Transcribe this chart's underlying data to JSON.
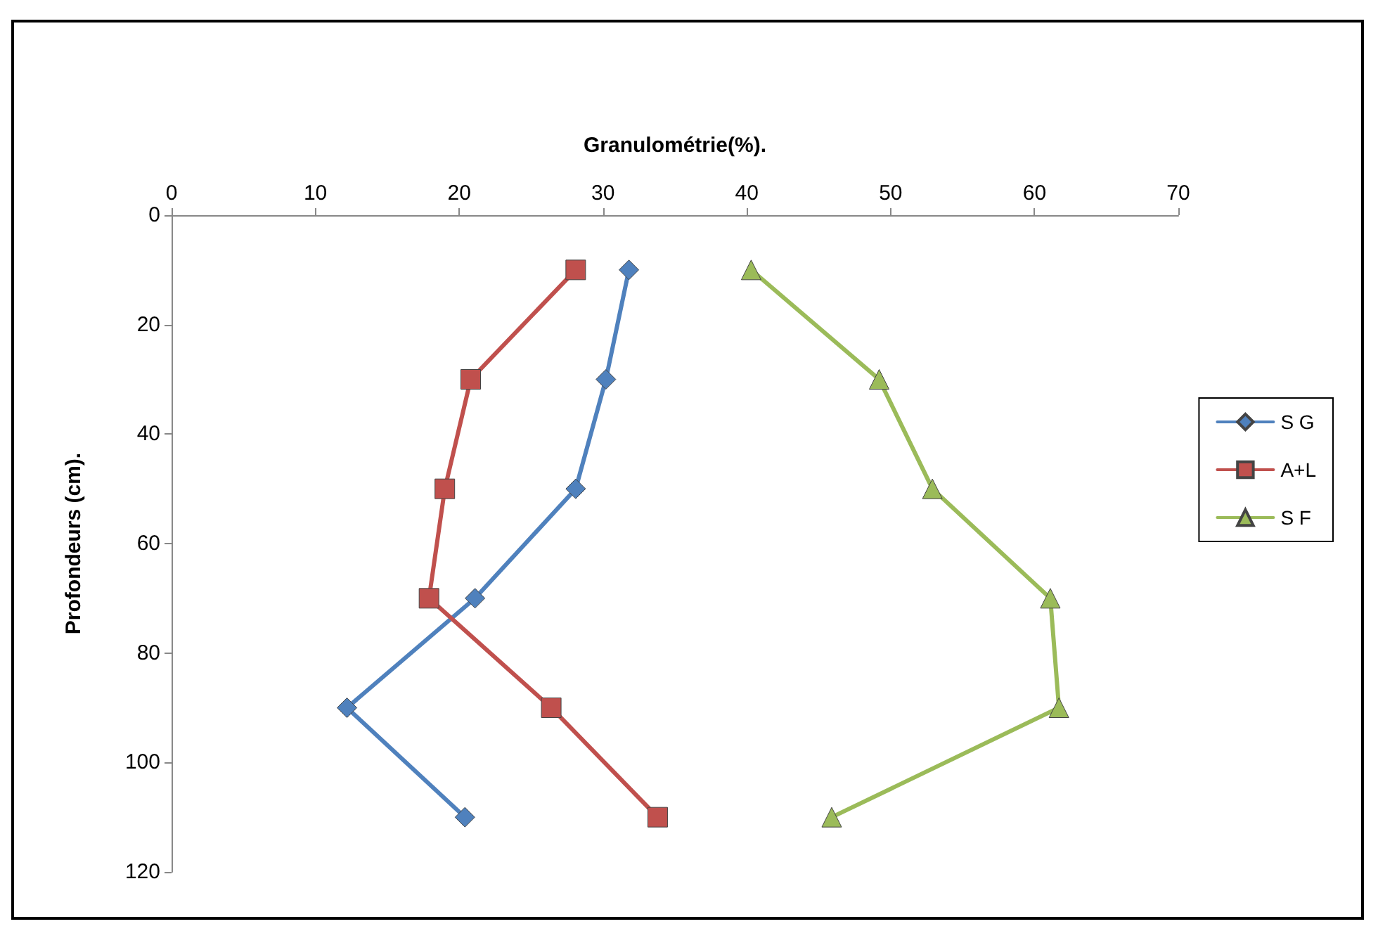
{
  "chart_data": {
    "type": "line",
    "xlabel": "Granulométrie(%).",
    "ylabel": "Profondeurs (cm).",
    "xlim": [
      0,
      70
    ],
    "xticks": [
      0,
      10,
      20,
      30,
      40,
      50,
      60,
      70
    ],
    "ylim": [
      120,
      0
    ],
    "yticks": [
      0,
      20,
      40,
      60,
      80,
      100,
      120
    ],
    "grid": false,
    "legend": "right",
    "series": [
      {
        "name": "S G",
        "color": "#4f81bd",
        "marker": "diamond",
        "x": [
          31.8,
          30.2,
          28.1,
          21.1,
          12.2,
          20.4
        ],
        "values": [
          10,
          30,
          50,
          70,
          90,
          110
        ]
      },
      {
        "name": "A+L",
        "color": "#c0504d",
        "marker": "square",
        "x": [
          28.1,
          20.8,
          19.0,
          17.9,
          26.4,
          33.8
        ],
        "values": [
          10,
          30,
          50,
          70,
          90,
          110
        ]
      },
      {
        "name": "S F",
        "color": "#9bbb59",
        "marker": "triangle",
        "x": [
          40.3,
          49.2,
          52.9,
          61.1,
          61.7,
          45.9
        ],
        "values": [
          10,
          30,
          50,
          70,
          90,
          110
        ]
      }
    ]
  }
}
